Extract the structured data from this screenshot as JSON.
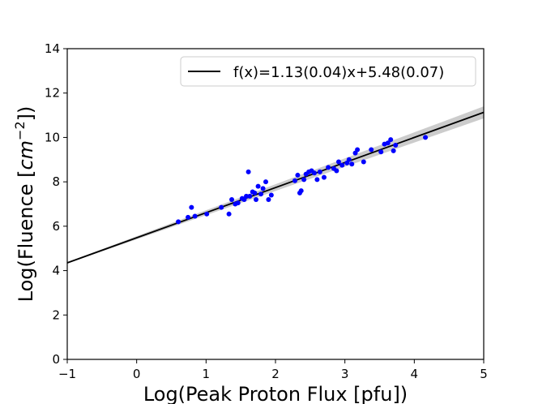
{
  "chart_data": {
    "type": "scatter",
    "title": "",
    "xlabel": "Log(Peak Proton Flux [pfu])",
    "ylabel_parts": {
      "prefix": "Log(Fluence [",
      "italic": "cm",
      "superscript": "−2",
      "suffix": "])"
    },
    "xlim": [
      -1,
      5
    ],
    "ylim": [
      0,
      14
    ],
    "xticks": [
      "−1",
      "0",
      "1",
      "2",
      "3",
      "4",
      "5"
    ],
    "yticks": [
      "0",
      "2",
      "4",
      "6",
      "8",
      "10",
      "12",
      "14"
    ],
    "grid": false,
    "legend": {
      "placement": "top-right",
      "label": "f(x)=1.13(0.04)x+5.48(0.07)"
    },
    "fit": {
      "slope": 1.13,
      "intercept": 5.48,
      "slope_err": 0.04,
      "intercept_err": 0.07,
      "color": "#000000"
    },
    "point_color": "#0000ff",
    "series": [
      {
        "x": [
          0.6,
          0.74,
          0.79,
          0.84,
          1.01,
          1.22,
          1.33,
          1.37,
          1.42,
          1.46,
          1.52,
          1.55,
          1.58,
          1.61,
          1.63,
          1.67,
          1.7,
          1.72,
          1.75,
          1.79,
          1.82,
          1.86,
          1.9,
          1.94,
          2.28,
          2.32,
          2.35,
          2.37,
          2.41,
          2.44,
          2.48,
          2.52,
          2.56,
          2.6,
          2.64,
          2.7,
          2.76,
          2.84,
          2.88,
          2.91,
          2.96,
          3.03,
          3.06,
          3.1,
          3.15,
          3.18,
          3.27,
          3.38,
          3.52,
          3.57,
          3.62,
          3.66,
          3.7,
          3.73,
          4.16
        ],
        "y": [
          6.2,
          6.4,
          6.85,
          6.45,
          6.55,
          6.85,
          6.55,
          7.2,
          7.0,
          7.05,
          7.25,
          7.2,
          7.35,
          8.45,
          7.35,
          7.55,
          7.5,
          7.2,
          7.8,
          7.45,
          7.7,
          8.0,
          7.2,
          7.4,
          8.05,
          8.3,
          7.5,
          7.6,
          8.1,
          8.35,
          8.45,
          8.5,
          8.4,
          8.1,
          8.45,
          8.2,
          8.65,
          8.6,
          8.5,
          8.9,
          8.75,
          8.85,
          9.0,
          8.8,
          9.3,
          9.45,
          8.9,
          9.45,
          9.35,
          9.7,
          9.75,
          9.9,
          9.4,
          9.65,
          10.0
        ]
      }
    ]
  }
}
